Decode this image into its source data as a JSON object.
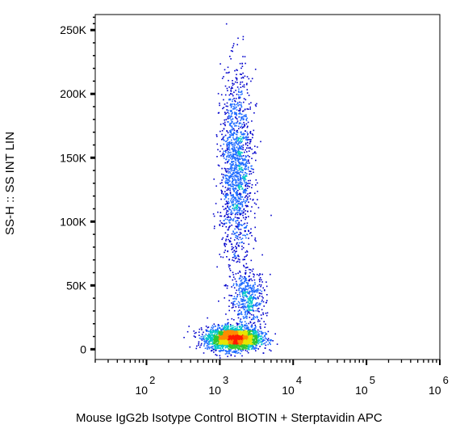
{
  "chart_data": {
    "type": "scatter",
    "style": "flow-cytometry-density-dot-plot",
    "title": "",
    "xlabel": "Mouse IgG2b Isotype Control BIOTIN  + Sterptavidin APC",
    "ylabel": "SS-H :: SS INT LIN",
    "x_scale": "log",
    "xlim": [
      20,
      1000000
    ],
    "x_decades": [
      {
        "value": 100,
        "base": "10",
        "exp": "2"
      },
      {
        "value": 1000,
        "base": "10",
        "exp": "3"
      },
      {
        "value": 10000,
        "base": "10",
        "exp": "4"
      },
      {
        "value": 100000,
        "base": "10",
        "exp": "5"
      },
      {
        "value": 1000000,
        "base": "10",
        "exp": "6"
      }
    ],
    "y_scale": "linear",
    "ylim": [
      -8000,
      262144
    ],
    "y_ticks": [
      {
        "value": 0,
        "label": "0"
      },
      {
        "value": 50000,
        "label": "50K"
      },
      {
        "value": 100000,
        "label": "100K"
      },
      {
        "value": 150000,
        "label": "150K"
      },
      {
        "value": 200000,
        "label": "200K"
      },
      {
        "value": 250000,
        "label": "250K"
      }
    ],
    "grid": false,
    "legend": "none",
    "density_colors": [
      "#0000cc",
      "#1e6bff",
      "#00c8c8",
      "#2ec82e",
      "#e6e600",
      "#ff8c00",
      "#ff1a00"
    ],
    "populations": [
      {
        "name": "",
        "n": 2600,
        "x_log_center": 3.18,
        "x_log_sd": 0.18,
        "y_center": 9000,
        "y_sd": 4500
      },
      {
        "name": "",
        "n": 1500,
        "x_log_center": 3.22,
        "x_log_sd": 0.11,
        "y_center": 140000,
        "y_sd": 38000
      },
      {
        "name": "",
        "n": 450,
        "x_log_center": 3.38,
        "x_log_sd": 0.12,
        "y_center": 40000,
        "y_sd": 11000
      }
    ]
  }
}
